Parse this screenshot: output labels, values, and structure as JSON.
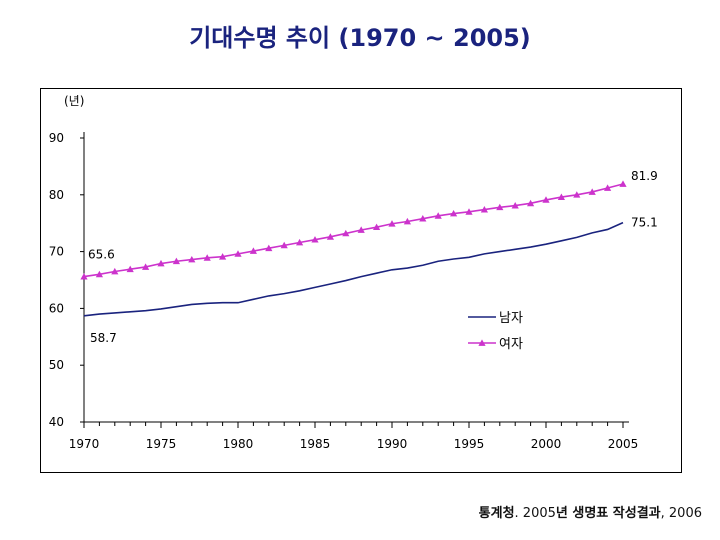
{
  "page_title": "기대수명 추이 (1970 ~ 2005)",
  "source": {
    "org": "통계청",
    "sep1": ". 2005",
    "mid": "년 생명표 작성결과",
    "sep2": ", 2006"
  },
  "chart_data": {
    "type": "line",
    "title": "기대수명 추이 (1970 ~ 2005)",
    "ylabel": "(년)",
    "xlabel": "",
    "xlim": [
      1970,
      2005
    ],
    "ylim": [
      40,
      90
    ],
    "xticks": [
      1970,
      1975,
      1980,
      1985,
      1990,
      1995,
      2000,
      2005
    ],
    "yticks": [
      40,
      50,
      60,
      70,
      80,
      90
    ],
    "grid": false,
    "legend": "center-right",
    "x": [
      1970,
      1971,
      1972,
      1973,
      1974,
      1975,
      1976,
      1977,
      1978,
      1979,
      1980,
      1981,
      1982,
      1983,
      1984,
      1985,
      1986,
      1987,
      1988,
      1989,
      1990,
      1991,
      1992,
      1993,
      1994,
      1995,
      1996,
      1997,
      1998,
      1999,
      2000,
      2001,
      2002,
      2003,
      2004,
      2005
    ],
    "series": [
      {
        "name": "남자",
        "color": "#1a237e",
        "marker": "none",
        "values": [
          58.7,
          59.0,
          59.2,
          59.4,
          59.6,
          59.9,
          60.3,
          60.7,
          60.9,
          61.0,
          61.0,
          61.6,
          62.2,
          62.6,
          63.1,
          63.7,
          64.3,
          64.9,
          65.6,
          66.2,
          66.8,
          67.1,
          67.6,
          68.3,
          68.7,
          69.0,
          69.6,
          70.0,
          70.4,
          70.8,
          71.3,
          71.9,
          72.5,
          73.3,
          73.9,
          75.1
        ]
      },
      {
        "name": "여자",
        "color": "#cc33cc",
        "marker": "triangle",
        "values": [
          65.6,
          66.0,
          66.5,
          66.9,
          67.3,
          67.9,
          68.3,
          68.6,
          68.9,
          69.1,
          69.6,
          70.1,
          70.6,
          71.1,
          71.6,
          72.1,
          72.6,
          73.2,
          73.8,
          74.3,
          74.9,
          75.3,
          75.8,
          76.3,
          76.7,
          77.0,
          77.4,
          77.8,
          78.1,
          78.5,
          79.1,
          79.6,
          80.0,
          80.5,
          81.2,
          81.9
        ]
      }
    ],
    "annotations": [
      {
        "label": "65.6",
        "series": "여자",
        "x": 1970
      },
      {
        "label": "58.7",
        "series": "남자",
        "x": 1970
      },
      {
        "label": "81.9",
        "series": "여자",
        "x": 2005
      },
      {
        "label": "75.1",
        "series": "남자",
        "x": 2005
      }
    ]
  }
}
